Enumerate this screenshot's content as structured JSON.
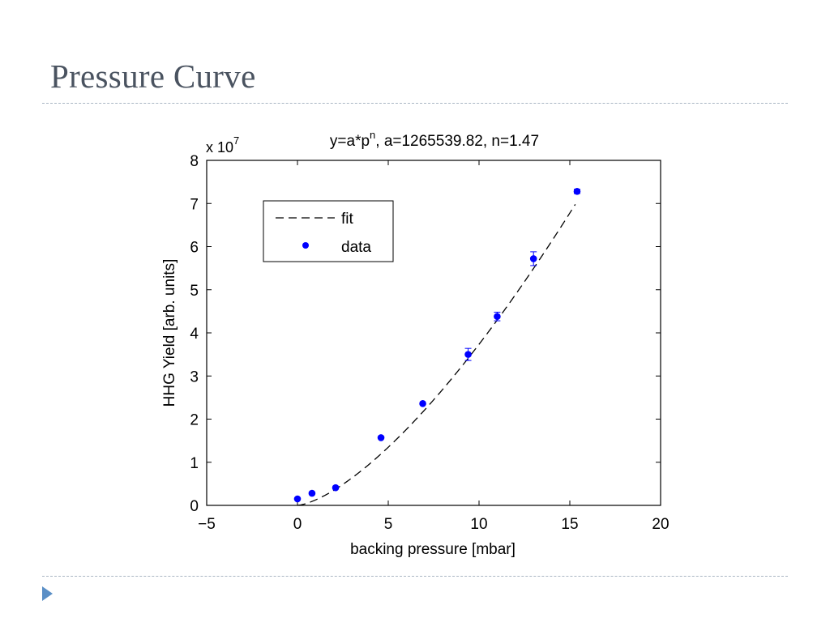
{
  "slide": {
    "title": "Pressure Curve",
    "accent_color": "#5a8fc6",
    "rule_color": "#a9b6c3",
    "bullet_icon": "triangle-bullet-icon"
  },
  "chart_data": {
    "type": "scatter",
    "title": "y=a*p",
    "title_superscript": "n",
    "title_suffix": ", a=1265539.82, n=1.47",
    "xlabel": "backing pressure [mbar]",
    "ylabel": "HHG Yield [arb. units]",
    "y_multiplier_label": "x 10",
    "y_multiplier_exp": "7",
    "xlim": [
      -5,
      20
    ],
    "ylim": [
      0,
      8
    ],
    "x_ticks": [
      -5,
      0,
      5,
      10,
      15,
      20
    ],
    "x_tick_labels": [
      "−5",
      "0",
      "5",
      "10",
      "15",
      "20"
    ],
    "y_ticks": [
      0,
      1,
      2,
      3,
      4,
      5,
      6,
      7,
      8
    ],
    "y_tick_labels": [
      "0",
      "1",
      "2",
      "3",
      "4",
      "5",
      "6",
      "7",
      "8"
    ],
    "grid": false,
    "legend": {
      "placement": "top-left",
      "entries": [
        {
          "label": "fit",
          "style": "dashed-line",
          "color": "#000000"
        },
        {
          "label": "data",
          "style": "marker",
          "color": "#0000ff"
        }
      ]
    },
    "fit": {
      "a": 1265539.82,
      "n": 1.47,
      "x_range": [
        0,
        15.3
      ],
      "color": "#000000"
    },
    "series": [
      {
        "name": "data",
        "color": "#0000ff",
        "x": [
          0.0,
          0.8,
          2.1,
          4.6,
          6.9,
          9.4,
          11.0,
          13.0,
          15.4
        ],
        "y": [
          0.15,
          0.28,
          0.41,
          1.57,
          2.36,
          3.5,
          4.38,
          5.72,
          7.28
        ],
        "error": [
          0.0,
          0.0,
          0.0,
          0.0,
          0.0,
          0.14,
          0.1,
          0.16,
          0.05
        ]
      }
    ]
  }
}
